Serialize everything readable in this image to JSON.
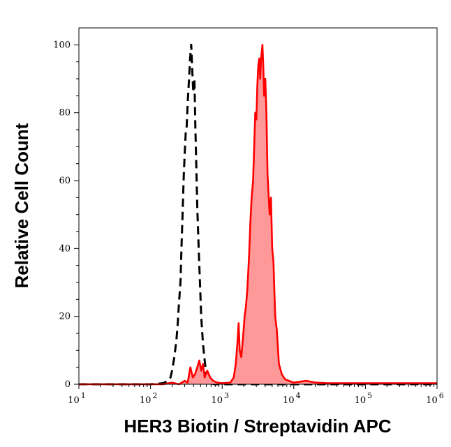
{
  "chart_data": {
    "type": "area",
    "xlabel": "HER3 Biotin / Streptavidin APC",
    "ylabel": "Relative Cell Count",
    "x_scale": "log",
    "xlim": [
      10,
      1000000
    ],
    "ylim": [
      0,
      105
    ],
    "grid": false,
    "y_ticks": [
      {
        "value": 0,
        "label": "0"
      },
      {
        "value": 20,
        "label": "20"
      },
      {
        "value": 40,
        "label": "40"
      },
      {
        "value": 60,
        "label": "60"
      },
      {
        "value": 80,
        "label": "80"
      },
      {
        "value": 100,
        "label": "100"
      }
    ],
    "x_ticks": [
      {
        "value": 10,
        "base": "10",
        "exp": "1"
      },
      {
        "value": 100,
        "base": "10",
        "exp": "2"
      },
      {
        "value": 1000,
        "base": "10",
        "exp": "3"
      },
      {
        "value": 10000,
        "base": "10",
        "exp": "4"
      },
      {
        "value": 100000,
        "base": "10",
        "exp": "5"
      },
      {
        "value": 1000000,
        "base": "10",
        "exp": "6"
      }
    ],
    "series": [
      {
        "style": "dashed-line",
        "color": "#000000",
        "points": [
          [
            10,
            0
          ],
          [
            100,
            0
          ],
          [
            150,
            0.3
          ],
          [
            175,
            1
          ],
          [
            190,
            2
          ],
          [
            200,
            4
          ],
          [
            215,
            8
          ],
          [
            230,
            13
          ],
          [
            240,
            18
          ],
          [
            250,
            24
          ],
          [
            262,
            30
          ],
          [
            270,
            40
          ],
          [
            280,
            50
          ],
          [
            292,
            62
          ],
          [
            300,
            68
          ],
          [
            310,
            74
          ],
          [
            320,
            76
          ],
          [
            332,
            84
          ],
          [
            345,
            90
          ],
          [
            357,
            96
          ],
          [
            370,
            100
          ],
          [
            382,
            93
          ],
          [
            395,
            86
          ],
          [
            410,
            90
          ],
          [
            422,
            76
          ],
          [
            435,
            65
          ],
          [
            450,
            52
          ],
          [
            470,
            40
          ],
          [
            490,
            30
          ],
          [
            510,
            20
          ],
          [
            540,
            12
          ],
          [
            570,
            7
          ],
          [
            600,
            3
          ],
          [
            650,
            1
          ],
          [
            700,
            0.2
          ],
          [
            800,
            0
          ],
          [
            3000,
            0
          ],
          [
            1000000,
            0
          ]
        ]
      },
      {
        "style": "filled-area",
        "color": "#ff0000",
        "fill": "#ff9999",
        "points": [
          [
            10,
            0
          ],
          [
            150,
            0
          ],
          [
            200,
            0.5
          ],
          [
            250,
            0
          ],
          [
            300,
            1
          ],
          [
            330,
            0.5
          ],
          [
            360,
            5
          ],
          [
            390,
            2
          ],
          [
            420,
            3
          ],
          [
            450,
            5
          ],
          [
            480,
            7
          ],
          [
            510,
            4
          ],
          [
            540,
            6
          ],
          [
            570,
            2
          ],
          [
            620,
            4
          ],
          [
            680,
            2
          ],
          [
            750,
            1
          ],
          [
            850,
            0.5
          ],
          [
            1000,
            0.3
          ],
          [
            1300,
            0.5
          ],
          [
            1450,
            2
          ],
          [
            1550,
            6
          ],
          [
            1630,
            12
          ],
          [
            1700,
            18
          ],
          [
            1760,
            10
          ],
          [
            1850,
            8
          ],
          [
            1960,
            14
          ],
          [
            2060,
            20
          ],
          [
            2150,
            23
          ],
          [
            2250,
            28
          ],
          [
            2380,
            38
          ],
          [
            2480,
            48
          ],
          [
            2580,
            55
          ],
          [
            2700,
            60
          ],
          [
            2800,
            70
          ],
          [
            2900,
            80
          ],
          [
            3000,
            78
          ],
          [
            3100,
            88
          ],
          [
            3200,
            94
          ],
          [
            3300,
            96
          ],
          [
            3400,
            90
          ],
          [
            3500,
            96
          ],
          [
            3650,
            100
          ],
          [
            3750,
            94
          ],
          [
            3850,
            85
          ],
          [
            4000,
            90
          ],
          [
            4150,
            80
          ],
          [
            4300,
            62
          ],
          [
            4450,
            56
          ],
          [
            4600,
            50
          ],
          [
            4800,
            55
          ],
          [
            5000,
            40
          ],
          [
            5200,
            36
          ],
          [
            5500,
            20
          ],
          [
            5800,
            16
          ],
          [
            6200,
            6
          ],
          [
            6800,
            3
          ],
          [
            7500,
            1.5
          ],
          [
            8500,
            1
          ],
          [
            10000,
            0.5
          ],
          [
            15000,
            1
          ],
          [
            20000,
            0.5
          ],
          [
            30000,
            0.3
          ],
          [
            100000,
            0.3
          ],
          [
            300000,
            0.3
          ],
          [
            1000000,
            0.3
          ]
        ]
      }
    ]
  }
}
